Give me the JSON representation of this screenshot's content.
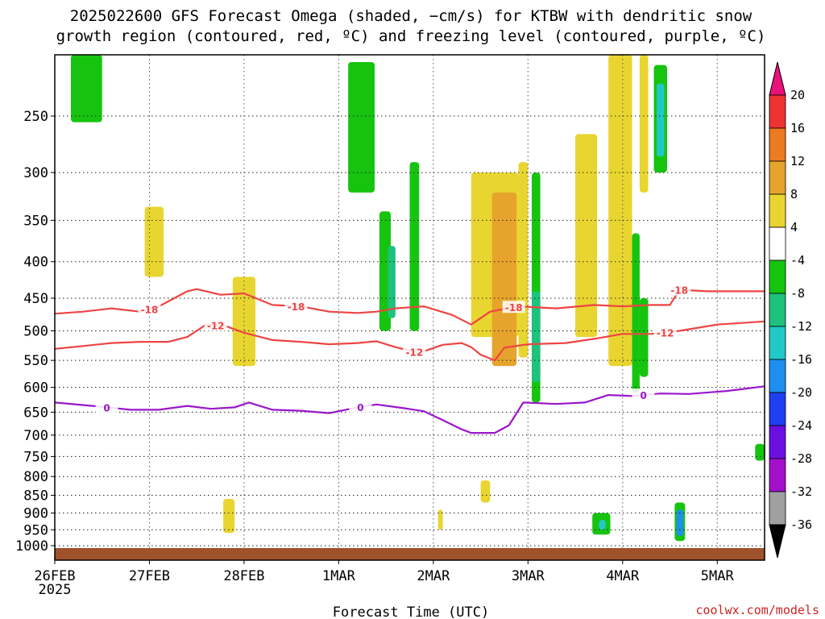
{
  "title": {
    "line1": "2025022600 GFS Forecast Omega (shaded, −cm/s) for KTBW with dendritic snow",
    "line2": "growth region (contoured, red, ºC) and freezing level (contoured, purple, ºC)"
  },
  "xlabel": "Forecast Time (UTC)",
  "credit": "coolwx.com/models",
  "chart_data": {
    "type": "heatmap",
    "x_axis": {
      "ticks": [
        "26FEB",
        "27FEB",
        "28FEB",
        "1MAR",
        "2MAR",
        "3MAR",
        "4MAR",
        "5MAR"
      ],
      "first_tick_year": "2025",
      "range_days": [
        0,
        7.5
      ]
    },
    "y_axis": {
      "ticks": [
        "250",
        "300",
        "350",
        "400",
        "450",
        "500",
        "550",
        "600",
        "650",
        "700",
        "750",
        "800",
        "850",
        "900",
        "950",
        "1000"
      ],
      "range_hPa": [
        1025,
        200
      ],
      "scale": "pressure"
    },
    "grid": true,
    "colorbar": {
      "labels": [
        "20",
        "16",
        "12",
        "8",
        "4",
        "-4",
        "-8",
        "-12",
        "-16",
        "-20",
        "-24",
        "-28",
        "-32",
        "-36"
      ],
      "segments": [
        {
          "from": 20,
          "to": 24,
          "color": "#e8127a"
        },
        {
          "from": 16,
          "to": 20,
          "color": "#ee3333"
        },
        {
          "from": 12,
          "to": 16,
          "color": "#ec7a22"
        },
        {
          "from": 8,
          "to": 12,
          "color": "#e6a42c"
        },
        {
          "from": 4,
          "to": 8,
          "color": "#e8d52f"
        },
        {
          "from": -4,
          "to": 4,
          "color": "#ffffff"
        },
        {
          "from": -8,
          "to": -4,
          "color": "#16c40f"
        },
        {
          "from": -12,
          "to": -8,
          "color": "#1ec27d"
        },
        {
          "from": -16,
          "to": -12,
          "color": "#22c8c8"
        },
        {
          "from": -20,
          "to": -16,
          "color": "#1e8ff0"
        },
        {
          "from": -24,
          "to": -20,
          "color": "#1f3ff0"
        },
        {
          "from": -28,
          "to": -24,
          "color": "#6a0fe0"
        },
        {
          "from": -32,
          "to": -28,
          "color": "#a30fcc"
        },
        {
          "from": -36,
          "to": -32,
          "color": "#a0a0a0"
        },
        {
          "from": -40,
          "to": -36,
          "color": "#000000"
        }
      ]
    },
    "omega_patches": [
      {
        "t0": 0.17,
        "t1": 0.5,
        "p0": 200,
        "p1": 255,
        "color": "#16c40f"
      },
      {
        "t0": 0.95,
        "t1": 1.15,
        "p0": 335,
        "p1": 420,
        "color": "#e8d52f"
      },
      {
        "t0": 1.88,
        "t1": 2.12,
        "p0": 420,
        "p1": 560,
        "color": "#e8d52f"
      },
      {
        "t0": 3.1,
        "t1": 3.38,
        "p0": 210,
        "p1": 320,
        "color": "#16c40f"
      },
      {
        "t0": 3.43,
        "t1": 3.55,
        "p0": 340,
        "p1": 500,
        "color": "#16c40f"
      },
      {
        "t0": 3.52,
        "t1": 3.6,
        "p0": 380,
        "p1": 480,
        "color": "#1ec27d"
      },
      {
        "t0": 3.75,
        "t1": 3.85,
        "p0": 290,
        "p1": 500,
        "color": "#16c40f"
      },
      {
        "t0": 4.4,
        "t1": 4.9,
        "p0": 300,
        "p1": 510,
        "color": "#e8d52f"
      },
      {
        "t0": 4.62,
        "t1": 4.88,
        "p0": 320,
        "p1": 560,
        "color": "#e6a42c"
      },
      {
        "t0": 4.9,
        "t1": 5.0,
        "p0": 290,
        "p1": 545,
        "color": "#e8d52f"
      },
      {
        "t0": 5.04,
        "t1": 5.13,
        "p0": 300,
        "p1": 630,
        "color": "#16c40f"
      },
      {
        "t0": 5.04,
        "t1": 5.13,
        "p0": 440,
        "p1": 590,
        "color": "#1ec27d"
      },
      {
        "t0": 5.5,
        "t1": 5.73,
        "p0": 265,
        "p1": 510,
        "color": "#e8d52f"
      },
      {
        "t0": 5.85,
        "t1": 6.1,
        "p0": 205,
        "p1": 560,
        "color": "#e8d52f"
      },
      {
        "t0": 6.1,
        "t1": 6.18,
        "p0": 365,
        "p1": 610,
        "color": "#16c40f"
      },
      {
        "t0": 6.18,
        "t1": 6.27,
        "p0": 205,
        "p1": 320,
        "color": "#e8d52f"
      },
      {
        "t0": 6.18,
        "t1": 6.27,
        "p0": 450,
        "p1": 580,
        "color": "#16c40f"
      },
      {
        "t0": 6.33,
        "t1": 6.47,
        "p0": 212,
        "p1": 300,
        "color": "#16c40f"
      },
      {
        "t0": 6.36,
        "t1": 6.44,
        "p0": 225,
        "p1": 285,
        "color": "#22c8c8"
      },
      {
        "t0": 5.68,
        "t1": 5.87,
        "p0": 900,
        "p1": 965,
        "color": "#16c40f"
      },
      {
        "t0": 5.75,
        "t1": 5.82,
        "p0": 920,
        "p1": 950,
        "color": "#22c8c8"
      },
      {
        "t0": 6.55,
        "t1": 6.66,
        "p0": 870,
        "p1": 985,
        "color": "#16c40f"
      },
      {
        "t0": 6.57,
        "t1": 6.64,
        "p0": 890,
        "p1": 970,
        "color": "#1e8ff0"
      },
      {
        "t0": 1.78,
        "t1": 1.9,
        "p0": 860,
        "p1": 960,
        "color": "#e8d52f"
      },
      {
        "t0": 7.4,
        "t1": 7.5,
        "p0": 720,
        "p1": 760,
        "color": "#16c40f"
      },
      {
        "t0": 4.05,
        "t1": 4.1,
        "p0": 890,
        "p1": 950,
        "color": "#e8d52f"
      },
      {
        "t0": 4.5,
        "t1": 4.6,
        "p0": 810,
        "p1": 870,
        "color": "#e8d52f"
      }
    ],
    "contours": [
      {
        "label": "-18",
        "color": "#ee4444",
        "points": [
          [
            0,
            473
          ],
          [
            0.3,
            470
          ],
          [
            0.6,
            465
          ],
          [
            0.9,
            470
          ],
          [
            1.1,
            462
          ],
          [
            1.4,
            440
          ],
          [
            1.5,
            437
          ],
          [
            1.75,
            445
          ],
          [
            2.0,
            443
          ],
          [
            2.3,
            460
          ],
          [
            2.6,
            462
          ],
          [
            2.9,
            470
          ],
          [
            3.2,
            472
          ],
          [
            3.4,
            470
          ],
          [
            3.6,
            465
          ],
          [
            3.9,
            462
          ],
          [
            4.2,
            475
          ],
          [
            4.4,
            490
          ],
          [
            4.6,
            470
          ],
          [
            4.9,
            462
          ],
          [
            5.3,
            465
          ],
          [
            5.7,
            460
          ],
          [
            6.0,
            462
          ],
          [
            6.3,
            460
          ],
          [
            6.5,
            460
          ],
          [
            6.6,
            438
          ],
          [
            6.9,
            440
          ],
          [
            7.5,
            440
          ]
        ],
        "labels_at": [
          1.0,
          2.55,
          4.85,
          6.6
        ]
      },
      {
        "label": "-12",
        "color": "#ee4444",
        "points": [
          [
            0,
            530
          ],
          [
            0.3,
            525
          ],
          [
            0.6,
            520
          ],
          [
            0.9,
            518
          ],
          [
            1.2,
            518
          ],
          [
            1.4,
            510
          ],
          [
            1.6,
            490
          ],
          [
            1.8,
            492
          ],
          [
            2.0,
            503
          ],
          [
            2.3,
            515
          ],
          [
            2.6,
            518
          ],
          [
            2.9,
            522
          ],
          [
            3.2,
            520
          ],
          [
            3.4,
            517
          ],
          [
            3.6,
            527
          ],
          [
            3.85,
            537
          ],
          [
            4.1,
            523
          ],
          [
            4.3,
            520
          ],
          [
            4.4,
            527
          ],
          [
            4.5,
            540
          ],
          [
            4.65,
            550
          ],
          [
            4.75,
            528
          ],
          [
            5.0,
            522
          ],
          [
            5.4,
            520
          ],
          [
            5.7,
            513
          ],
          [
            6.0,
            505
          ],
          [
            6.3,
            505
          ],
          [
            6.6,
            500
          ],
          [
            7.0,
            490
          ],
          [
            7.5,
            485
          ]
        ],
        "labels_at": [
          1.7,
          3.8,
          6.45
        ]
      },
      {
        "label": "0",
        "color": "#9a16cc",
        "points": [
          [
            0,
            630
          ],
          [
            0.4,
            637
          ],
          [
            0.8,
            645
          ],
          [
            1.1,
            645
          ],
          [
            1.4,
            637
          ],
          [
            1.65,
            643
          ],
          [
            1.9,
            640
          ],
          [
            2.05,
            630
          ],
          [
            2.3,
            645
          ],
          [
            2.6,
            647
          ],
          [
            2.9,
            652
          ],
          [
            3.2,
            640
          ],
          [
            3.4,
            634
          ],
          [
            3.7,
            642
          ],
          [
            3.9,
            648
          ],
          [
            4.1,
            667
          ],
          [
            4.3,
            687
          ],
          [
            4.4,
            695
          ],
          [
            4.65,
            695
          ],
          [
            4.8,
            678
          ],
          [
            4.95,
            630
          ],
          [
            5.3,
            633
          ],
          [
            5.6,
            630
          ],
          [
            5.85,
            615
          ],
          [
            6.1,
            617
          ],
          [
            6.4,
            612
          ],
          [
            6.7,
            613
          ],
          [
            7.1,
            607
          ],
          [
            7.5,
            598
          ]
        ],
        "labels_at": [
          0.55,
          3.23,
          6.22
        ]
      }
    ]
  }
}
